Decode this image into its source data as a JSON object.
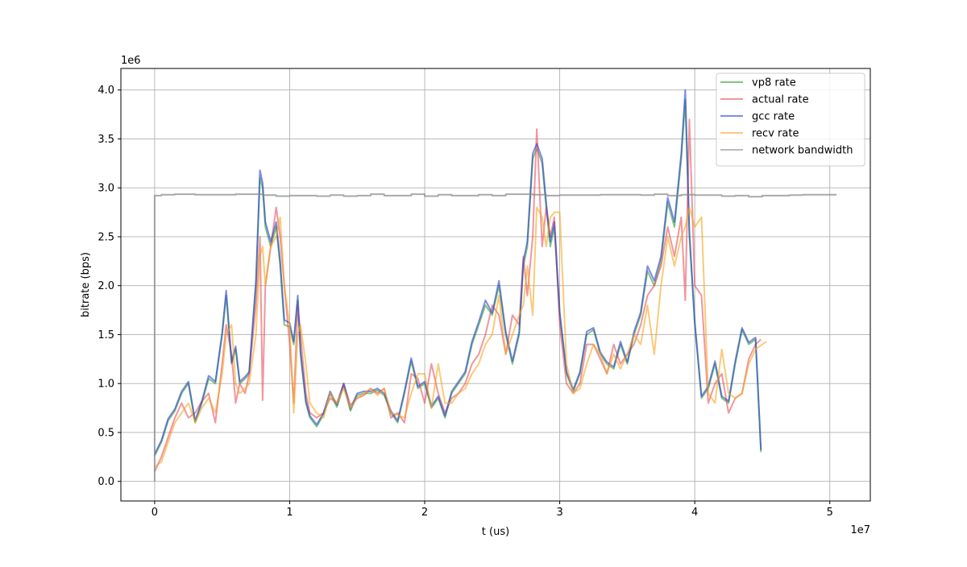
{
  "chart_data": {
    "type": "line",
    "title": "",
    "xlabel": "t (us)",
    "ylabel": "bitrate (bps)",
    "x_offset_text": "1e7",
    "y_offset_text": "1e6",
    "xlim": [
      -2500000,
      53000000
    ],
    "ylim": [
      -200000,
      4220000
    ],
    "grid": true,
    "legend_position": "upper right",
    "x_ticks": [
      {
        "value": 0,
        "label": "0"
      },
      {
        "value": 10000000,
        "label": "1"
      },
      {
        "value": 20000000,
        "label": "2"
      },
      {
        "value": 30000000,
        "label": "3"
      },
      {
        "value": 40000000,
        "label": "4"
      },
      {
        "value": 50000000,
        "label": "5"
      }
    ],
    "y_ticks": [
      {
        "value": 0,
        "label": "0.0"
      },
      {
        "value": 500000,
        "label": "0.5"
      },
      {
        "value": 1000000,
        "label": "1.0"
      },
      {
        "value": 1500000,
        "label": "1.5"
      },
      {
        "value": 2000000,
        "label": "2.0"
      },
      {
        "value": 2500000,
        "label": "2.5"
      },
      {
        "value": 3000000,
        "label": "3.0"
      },
      {
        "value": 3500000,
        "label": "3.5"
      },
      {
        "value": 4000000,
        "label": "4.0"
      }
    ],
    "series": [
      {
        "name": "vp8 rate",
        "color": "#2ca02c",
        "x": [
          0,
          500000,
          1000000,
          1500000,
          2000000,
          2500000,
          3000000,
          3500000,
          4000000,
          4500000,
          5000000,
          5300000,
          5700000,
          6000000,
          6300000,
          6700000,
          7000000,
          7500000,
          7800000,
          8000000,
          8200000,
          8600000,
          9000000,
          9300000,
          9600000,
          10000000,
          10300000,
          10600000,
          10800000,
          11200000,
          11500000,
          12000000,
          12500000,
          13000000,
          13500000,
          14000000,
          14500000,
          15000000,
          15500000,
          16000000,
          16500000,
          17000000,
          17500000,
          18000000,
          18500000,
          19000000,
          19500000,
          20000000,
          20500000,
          21000000,
          21500000,
          22000000,
          22500000,
          23000000,
          23500000,
          24000000,
          24500000,
          25000000,
          25500000,
          26000000,
          26500000,
          27000000,
          27300000,
          27600000,
          28000000,
          28300000,
          28700000,
          29000000,
          29300000,
          29600000,
          30000000,
          30500000,
          31000000,
          31500000,
          32000000,
          32500000,
          33000000,
          33500000,
          34000000,
          34500000,
          35000000,
          35500000,
          36000000,
          36500000,
          37000000,
          37500000,
          38000000,
          38500000,
          39000000,
          39300000,
          39600000,
          40000000,
          40500000,
          41000000,
          41500000,
          42000000,
          42500000,
          43000000,
          43500000,
          44000000,
          44500000,
          44900000
        ],
        "values": [
          260000,
          400000,
          620000,
          720000,
          900000,
          1000000,
          600000,
          800000,
          1050000,
          1000000,
          1500000,
          1900000,
          1200000,
          1350000,
          1000000,
          1050000,
          1100000,
          2000000,
          3100000,
          3000000,
          2600000,
          2400000,
          2600000,
          2200000,
          1600000,
          1580000,
          1400000,
          1850000,
          1300000,
          800000,
          650000,
          560000,
          680000,
          900000,
          760000,
          980000,
          720000,
          880000,
          900000,
          900000,
          930000,
          880000,
          700000,
          600000,
          900000,
          1230000,
          950000,
          1000000,
          750000,
          850000,
          650000,
          900000,
          1000000,
          1100000,
          1400000,
          1600000,
          1800000,
          1700000,
          2000000,
          1500000,
          1200000,
          1500000,
          2200000,
          2400000,
          3300000,
          3400000,
          3250000,
          2800000,
          2400000,
          2600000,
          1700000,
          1100000,
          920000,
          1100000,
          1500000,
          1550000,
          1300000,
          1200000,
          1150000,
          1400000,
          1200000,
          1500000,
          1700000,
          2150000,
          2000000,
          2250000,
          2850000,
          2600000,
          3300000,
          3900000,
          2500000,
          1600000,
          850000,
          950000,
          1200000,
          850000,
          800000,
          1200000,
          1550000,
          1400000,
          1450000,
          300000
        ]
      },
      {
        "name": "actual rate",
        "color": "#e8505b",
        "x": [
          0,
          500000,
          1000000,
          1500000,
          2000000,
          2500000,
          3000000,
          3500000,
          4000000,
          4500000,
          5000000,
          5300000,
          5700000,
          6000000,
          6300000,
          6700000,
          7000000,
          7500000,
          7800000,
          8000000,
          8200000,
          8600000,
          9000000,
          9300000,
          9600000,
          10000000,
          10300000,
          10600000,
          10800000,
          11200000,
          11500000,
          12000000,
          12500000,
          13000000,
          13500000,
          14000000,
          14500000,
          15000000,
          15500000,
          16000000,
          16500000,
          17000000,
          17500000,
          18000000,
          18500000,
          19000000,
          19500000,
          20000000,
          20500000,
          21000000,
          21500000,
          22000000,
          22500000,
          23000000,
          23500000,
          24000000,
          24500000,
          25000000,
          25500000,
          26000000,
          26500000,
          27000000,
          27300000,
          27600000,
          28000000,
          28300000,
          28700000,
          29000000,
          29300000,
          29600000,
          30000000,
          30500000,
          31000000,
          31500000,
          32000000,
          32500000,
          33000000,
          33500000,
          34000000,
          34500000,
          35000000,
          35500000,
          36000000,
          36500000,
          37000000,
          37500000,
          38000000,
          38500000,
          39000000,
          39300000,
          39600000,
          40000000,
          40500000,
          41000000,
          41500000,
          42000000,
          42500000,
          43000000,
          43500000,
          44000000,
          44500000,
          44900000
        ],
        "values": [
          100000,
          250000,
          450000,
          650000,
          800000,
          650000,
          700000,
          820000,
          900000,
          600000,
          1200000,
          1600000,
          1300000,
          800000,
          1000000,
          900000,
          1100000,
          1800000,
          2500000,
          830000,
          2000000,
          2400000,
          2800000,
          2500000,
          2000000,
          1400000,
          800000,
          1800000,
          1500000,
          900000,
          700000,
          650000,
          700000,
          850000,
          800000,
          1000000,
          780000,
          850000,
          880000,
          950000,
          900000,
          950000,
          650000,
          700000,
          600000,
          1100000,
          1050000,
          800000,
          1200000,
          900000,
          700000,
          850000,
          900000,
          1000000,
          1200000,
          1300000,
          1500000,
          1800000,
          1700000,
          1300000,
          1700000,
          1600000,
          2300000,
          1900000,
          2500000,
          3600000,
          2400000,
          2800000,
          2500000,
          2700000,
          1600000,
          1000000,
          900000,
          1000000,
          1400000,
          1400000,
          1250000,
          1100000,
          1400000,
          1200000,
          1300000,
          1400000,
          1600000,
          1900000,
          2000000,
          2200000,
          2600000,
          2300000,
          2700000,
          1850000,
          3700000,
          2000000,
          1900000,
          800000,
          1000000,
          1100000,
          700000,
          850000,
          900000,
          1250000,
          1400000,
          1450000
        ]
      },
      {
        "name": "gcc rate",
        "color": "#2c3ed4",
        "x": [
          0,
          500000,
          1000000,
          1500000,
          2000000,
          2500000,
          3000000,
          3500000,
          4000000,
          4500000,
          5000000,
          5300000,
          5700000,
          6000000,
          6300000,
          6700000,
          7000000,
          7500000,
          7800000,
          8000000,
          8200000,
          8600000,
          9000000,
          9300000,
          9600000,
          10000000,
          10300000,
          10600000,
          10800000,
          11200000,
          11500000,
          12000000,
          12500000,
          13000000,
          13500000,
          14000000,
          14500000,
          15000000,
          15500000,
          16000000,
          16500000,
          17000000,
          17500000,
          18000000,
          18500000,
          19000000,
          19500000,
          20000000,
          20500000,
          21000000,
          21500000,
          22000000,
          22500000,
          23000000,
          23500000,
          24000000,
          24500000,
          25000000,
          25500000,
          26000000,
          26500000,
          27000000,
          27300000,
          27600000,
          28000000,
          28300000,
          28700000,
          29000000,
          29300000,
          29600000,
          30000000,
          30500000,
          31000000,
          31500000,
          32000000,
          32500000,
          33000000,
          33500000,
          34000000,
          34500000,
          35000000,
          35500000,
          36000000,
          36500000,
          37000000,
          37500000,
          38000000,
          38500000,
          39000000,
          39300000,
          39600000,
          40000000,
          40500000,
          41000000,
          41500000,
          42000000,
          42500000,
          43000000,
          43500000,
          44000000,
          44500000,
          44900000
        ],
        "values": [
          280000,
          420000,
          640000,
          740000,
          920000,
          1020000,
          620000,
          820000,
          1080000,
          1020000,
          1520000,
          1950000,
          1220000,
          1380000,
          1020000,
          1070000,
          1120000,
          2050000,
          3180000,
          3050000,
          2650000,
          2450000,
          2650000,
          2250000,
          1650000,
          1620000,
          1430000,
          1900000,
          1330000,
          820000,
          670000,
          580000,
          700000,
          920000,
          780000,
          1000000,
          740000,
          900000,
          920000,
          920000,
          950000,
          900000,
          720000,
          620000,
          920000,
          1260000,
          970000,
          1020000,
          770000,
          870000,
          670000,
          920000,
          1020000,
          1120000,
          1430000,
          1630000,
          1850000,
          1720000,
          2050000,
          1530000,
          1230000,
          1530000,
          2250000,
          2450000,
          3350000,
          3450000,
          3300000,
          2850000,
          2450000,
          2650000,
          1730000,
          1120000,
          940000,
          1120000,
          1530000,
          1570000,
          1320000,
          1220000,
          1170000,
          1430000,
          1220000,
          1530000,
          1730000,
          2200000,
          2050000,
          2300000,
          2900000,
          2650000,
          3350000,
          4000000,
          2550000,
          1630000,
          870000,
          970000,
          1230000,
          870000,
          820000,
          1230000,
          1570000,
          1420000,
          1470000,
          320000
        ]
      },
      {
        "name": "recv rate",
        "color": "#f5a623",
        "x": [
          0,
          500000,
          1000000,
          1500000,
          2000000,
          2500000,
          3000000,
          3500000,
          4000000,
          4500000,
          5000000,
          5300000,
          5700000,
          6000000,
          6300000,
          6700000,
          7000000,
          7500000,
          7800000,
          8000000,
          8200000,
          8600000,
          9000000,
          9300000,
          9600000,
          10000000,
          10300000,
          10600000,
          10800000,
          11200000,
          11500000,
          12000000,
          12500000,
          13000000,
          13500000,
          14000000,
          14500000,
          15000000,
          15500000,
          16000000,
          16500000,
          17000000,
          17500000,
          18000000,
          18500000,
          19000000,
          19500000,
          20000000,
          20500000,
          21000000,
          21500000,
          22000000,
          22500000,
          23000000,
          23500000,
          24000000,
          24500000,
          25000000,
          25500000,
          26000000,
          26500000,
          27000000,
          27300000,
          27600000,
          28000000,
          28300000,
          28700000,
          29000000,
          29300000,
          29600000,
          30000000,
          30500000,
          31000000,
          31500000,
          32000000,
          32500000,
          33000000,
          33500000,
          34000000,
          34500000,
          35000000,
          35500000,
          36000000,
          36500000,
          37000000,
          37500000,
          38000000,
          38500000,
          39000000,
          39300000,
          39600000,
          40000000,
          40500000,
          41000000,
          41500000,
          42000000,
          42500000,
          43000000,
          43500000,
          44000000,
          44500000,
          45300000
        ],
        "values": [
          150000,
          200000,
          400000,
          600000,
          700000,
          800000,
          600000,
          750000,
          850000,
          700000,
          1100000,
          1500000,
          1600000,
          1000000,
          900000,
          950000,
          1000000,
          1500000,
          2300000,
          2400000,
          2000000,
          2400000,
          2500000,
          2700000,
          2000000,
          1600000,
          700000,
          1500000,
          1600000,
          1200000,
          800000,
          700000,
          650000,
          900000,
          800000,
          950000,
          750000,
          850000,
          900000,
          950000,
          880000,
          950000,
          700000,
          680000,
          650000,
          900000,
          1100000,
          1100000,
          750000,
          1200000,
          800000,
          800000,
          900000,
          950000,
          1100000,
          1200000,
          1400000,
          1500000,
          1900000,
          1300000,
          1500000,
          1700000,
          1800000,
          2200000,
          1700000,
          2800000,
          2700000,
          2400000,
          2700000,
          2750000,
          2750000,
          1200000,
          900000,
          950000,
          1200000,
          1400000,
          1300000,
          1100000,
          1300000,
          1150000,
          1300000,
          1500000,
          1400000,
          1800000,
          1300000,
          2000000,
          2500000,
          2200000,
          2500000,
          2600000,
          2800000,
          2600000,
          2700000,
          900000,
          800000,
          1350000,
          900000,
          850000,
          900000,
          1200000,
          1350000,
          1430000
        ]
      },
      {
        "name": "network bandwidth",
        "color": "#8c8c8c",
        "x": [
          0,
          0,
          500000,
          1500000,
          3000000,
          5000000,
          6000000,
          8000000,
          9000000,
          10000000,
          12000000,
          13000000,
          14000000,
          15000000,
          16000000,
          17000000,
          19000000,
          20000000,
          21000000,
          22000000,
          24000000,
          25000000,
          26000000,
          28000000,
          29000000,
          30000000,
          32000000,
          33000000,
          35000000,
          36000000,
          37000000,
          38000000,
          39000000,
          40000000,
          41000000,
          42000000,
          43000000,
          44000000,
          45000000,
          46000000,
          47000000,
          48000000,
          50000000,
          50500000
        ],
        "values": [
          0,
          2920000,
          2930000,
          2935000,
          2930000,
          2930000,
          2935000,
          2925000,
          2915000,
          2920000,
          2915000,
          2925000,
          2915000,
          2920000,
          2935000,
          2920000,
          2935000,
          2915000,
          2930000,
          2920000,
          2930000,
          2920000,
          2935000,
          2930000,
          2920000,
          2925000,
          2925000,
          2930000,
          2930000,
          2925000,
          2935000,
          2920000,
          2930000,
          2925000,
          2925000,
          2915000,
          2920000,
          2910000,
          2920000,
          2920000,
          2925000,
          2930000,
          2930000,
          2930000
        ]
      }
    ]
  }
}
